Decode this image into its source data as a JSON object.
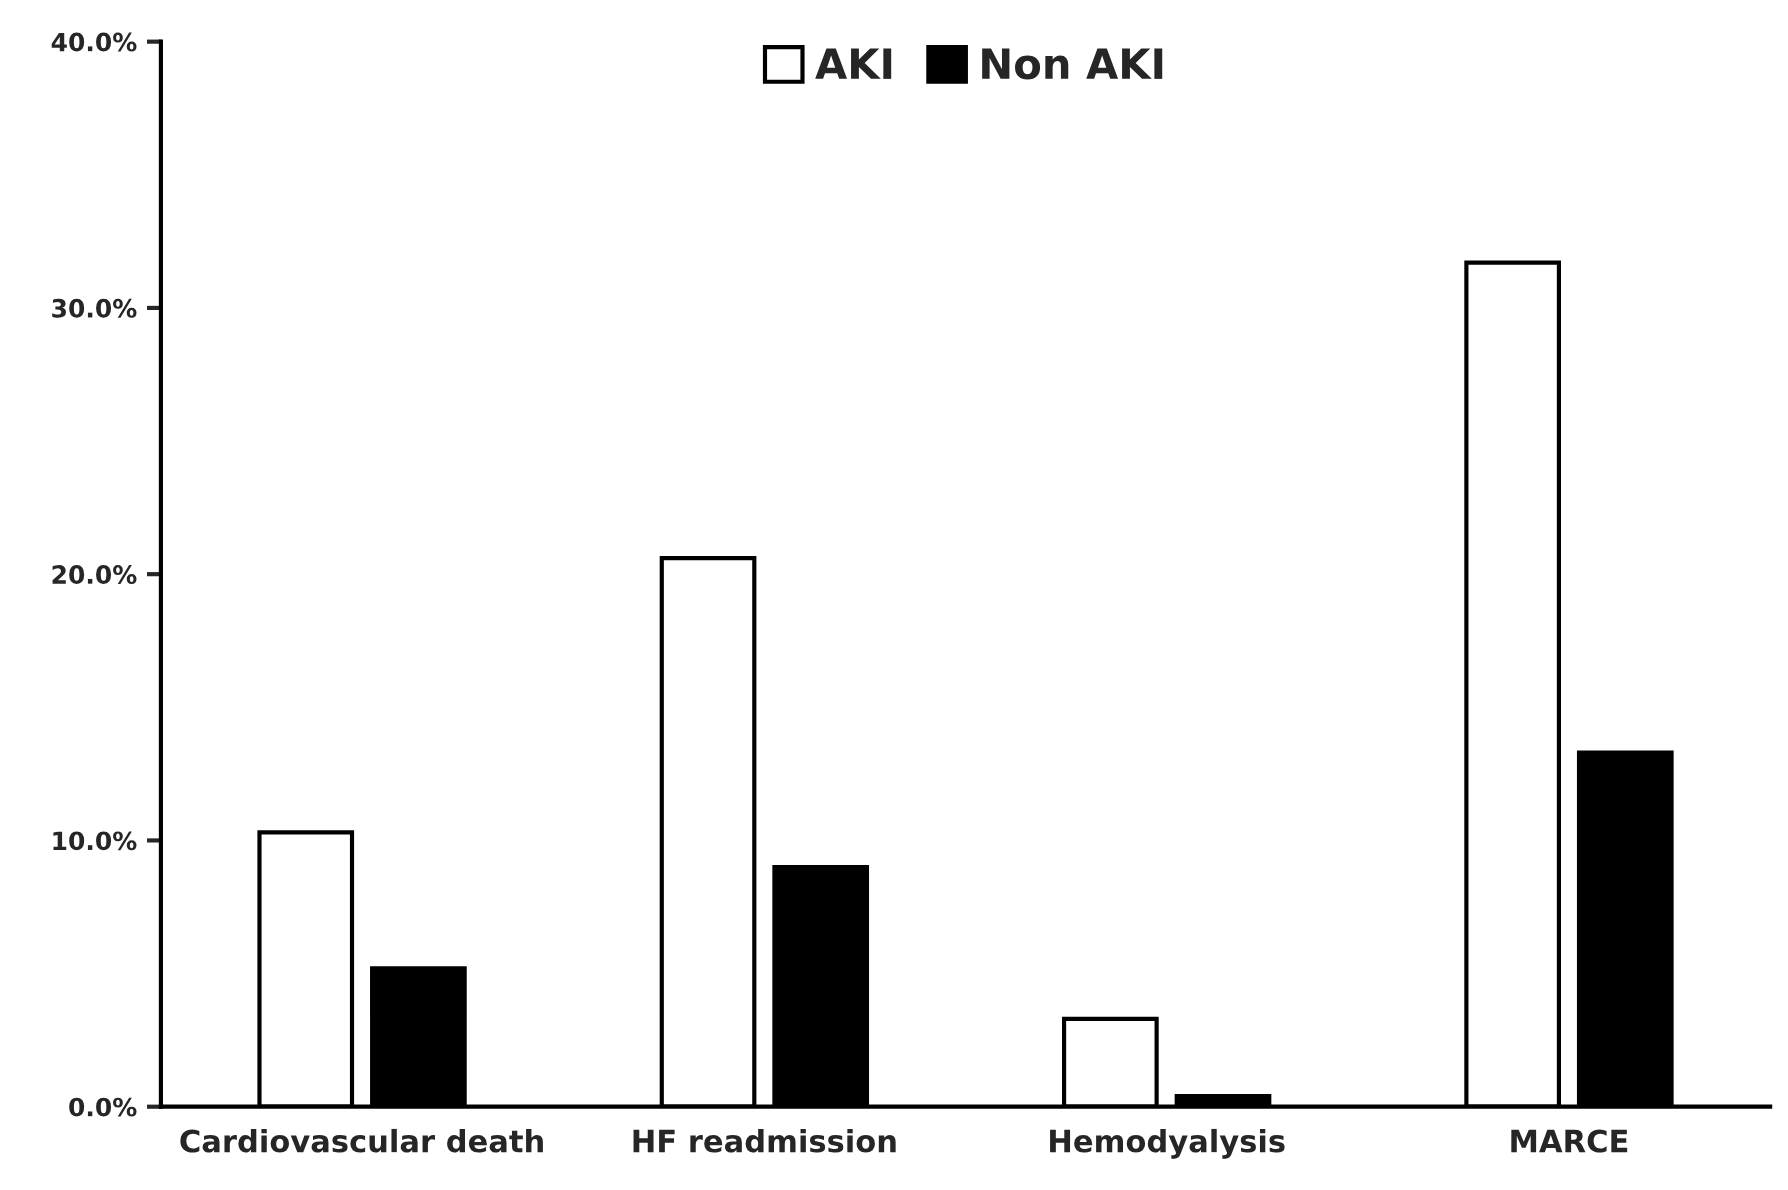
{
  "chart_data": {
    "type": "bar",
    "categories": [
      "Cardiovascular death",
      "HF readmission",
      "Hemodyalysis",
      "MARCE"
    ],
    "series": [
      {
        "name": "AKI",
        "color": "#ffffff",
        "values": [
          10.3,
          20.6,
          3.3,
          31.7
        ]
      },
      {
        "name": "Non AKI",
        "color": "#000000",
        "values": [
          5.2,
          9.0,
          0.4,
          13.3
        ]
      }
    ],
    "ylim": [
      0,
      40
    ],
    "yticks": [
      {
        "value": 0,
        "label": "0.0%"
      },
      {
        "value": 10,
        "label": "10.0%"
      },
      {
        "value": 20,
        "label": "20.0%"
      },
      {
        "value": 30,
        "label": "30.0%"
      },
      {
        "value": 40,
        "label": "40.0%"
      }
    ],
    "grid": false,
    "legend": "top"
  }
}
